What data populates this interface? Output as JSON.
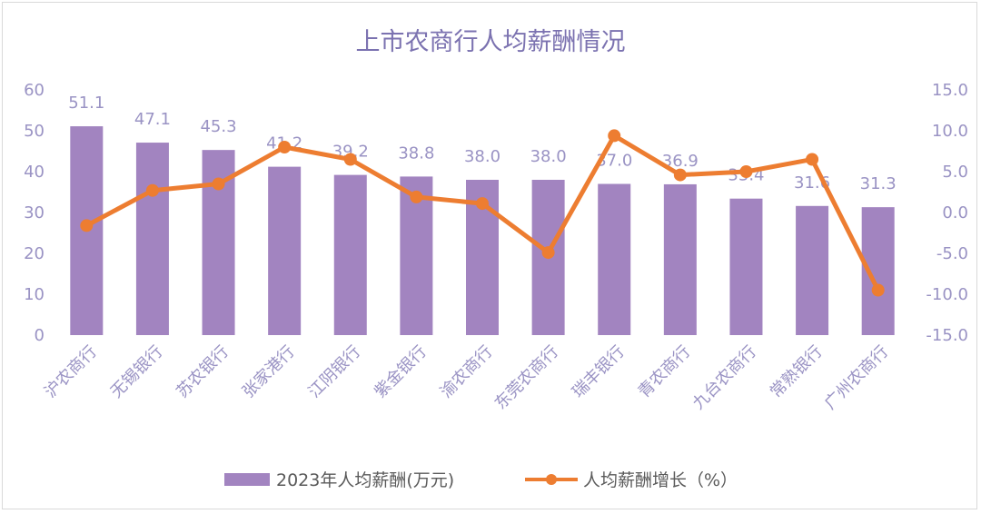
{
  "chart_data": {
    "type": "bar",
    "title": "上市农商行人均薪酬情况",
    "categories": [
      "沪农商行",
      "无锡银行",
      "苏农银行",
      "张家港行",
      "江阴银行",
      "紫金银行",
      "渝农商行",
      "东莞农商行",
      "瑞丰银行",
      "青农商行",
      "九台农商行",
      "常熟银行",
      "广州农商行"
    ],
    "series": [
      {
        "name": "2023年人均薪酬(万元)",
        "type": "bar",
        "axis": "left",
        "color": "#a284c0",
        "values": [
          51.1,
          47.1,
          45.3,
          41.2,
          39.2,
          38.8,
          38.0,
          38.0,
          37.0,
          36.9,
          33.4,
          31.6,
          31.3
        ],
        "labels": [
          "51.1",
          "47.1",
          "45.3",
          "41.2",
          "39.2",
          "38.8",
          "38.0",
          "38.0",
          "37.0",
          "36.9",
          "33.4",
          "31.6",
          "31.3"
        ]
      },
      {
        "name": "人均薪酬增长（%）",
        "type": "line",
        "axis": "right",
        "color": "#ed7d31",
        "values": [
          -1.6,
          2.7,
          3.5,
          8.0,
          6.5,
          1.9,
          1.1,
          -4.9,
          9.4,
          4.6,
          5.0,
          6.5,
          -9.5
        ]
      }
    ],
    "y_left": {
      "min": 0,
      "max": 60,
      "ticks": [
        "60",
        "50",
        "40",
        "30",
        "20",
        "10",
        "0"
      ]
    },
    "y_right": {
      "min": -15,
      "max": 15,
      "ticks": [
        "15.0",
        "10.0",
        "5.0",
        "0.0",
        "-5.0",
        "-10.0",
        "-15.0"
      ]
    },
    "grid": false,
    "legend_position": "bottom"
  }
}
